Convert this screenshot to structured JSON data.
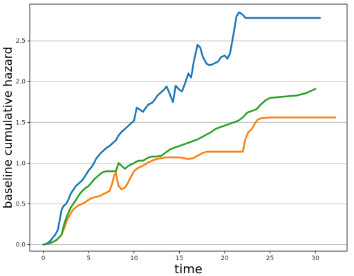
{
  "chart_data": {
    "type": "line",
    "title": "",
    "xlabel": "time",
    "ylabel": "baseline cumulative hazard",
    "xlim": [
      -1.5,
      33.5
    ],
    "ylim": [
      -0.08,
      2.95
    ],
    "xticks": [
      0,
      5,
      10,
      15,
      20,
      25,
      30
    ],
    "yticks": [
      0.0,
      0.5,
      1.0,
      1.5,
      2.0,
      2.5
    ],
    "grid": "horizontal",
    "legend": "none",
    "series": [
      {
        "color": "#1f77b4",
        "x": [
          0,
          0.5,
          0.8,
          1.0,
          1.3,
          1.6,
          1.8,
          2.0,
          2.2,
          2.5,
          2.8,
          3.0,
          3.3,
          3.6,
          4.0,
          4.3,
          4.6,
          5.0,
          5.3,
          5.6,
          5.8,
          6.0,
          6.3,
          6.6,
          7.0,
          7.3,
          7.6,
          8.0,
          8.3,
          8.6,
          9.0,
          9.3,
          9.6,
          10.0,
          10.3,
          10.6,
          11.0,
          11.3,
          11.6,
          12.0,
          12.3,
          12.6,
          13.0,
          13.3,
          13.6,
          14.0,
          14.3,
          14.6,
          15.0,
          15.3,
          15.6,
          16.0,
          16.3,
          16.6,
          17.0,
          17.3,
          17.6,
          18.0,
          18.3,
          18.6,
          19.0,
          19.3,
          19.6,
          20.0,
          20.3,
          20.6,
          21.0,
          21.3,
          21.6,
          22.0,
          22.3,
          22.6,
          23.0,
          23.3,
          23.6,
          24.0,
          24.3,
          24.6,
          25.0,
          26.0,
          27.0,
          28.0,
          29.0,
          30.5
        ],
        "y": [
          0.0,
          0.02,
          0.05,
          0.08,
          0.12,
          0.18,
          0.3,
          0.42,
          0.47,
          0.5,
          0.56,
          0.62,
          0.67,
          0.72,
          0.76,
          0.79,
          0.84,
          0.91,
          0.95,
          1.0,
          1.05,
          1.08,
          1.12,
          1.15,
          1.19,
          1.21,
          1.24,
          1.28,
          1.34,
          1.38,
          1.42,
          1.45,
          1.48,
          1.52,
          1.68,
          1.66,
          1.63,
          1.68,
          1.72,
          1.74,
          1.78,
          1.83,
          1.87,
          1.9,
          1.94,
          1.83,
          1.75,
          1.95,
          1.9,
          1.88,
          1.97,
          2.1,
          2.05,
          2.25,
          2.45,
          2.42,
          2.3,
          2.22,
          2.2,
          2.21,
          2.23,
          2.25,
          2.3,
          2.32,
          2.28,
          2.35,
          2.6,
          2.8,
          2.85,
          2.82,
          2.78,
          2.78,
          2.78,
          2.78,
          2.78,
          2.78,
          2.78,
          2.78,
          2.78,
          2.78,
          2.78,
          2.78,
          2.78,
          2.78
        ]
      },
      {
        "color": "#ff7f0e",
        "x": [
          0,
          0.5,
          1.0,
          1.5,
          2.0,
          2.3,
          2.6,
          3.0,
          3.3,
          3.6,
          4.0,
          4.3,
          4.6,
          5.0,
          5.3,
          5.6,
          6.0,
          6.3,
          6.6,
          7.0,
          7.3,
          7.6,
          7.8,
          8.0,
          8.3,
          8.6,
          9.0,
          9.3,
          9.6,
          10.0,
          10.3,
          10.6,
          11.0,
          11.3,
          11.6,
          12.0,
          12.5,
          13.0,
          13.5,
          14.0,
          14.5,
          15.0,
          15.5,
          16.0,
          16.5,
          17.0,
          17.5,
          18.0,
          18.5,
          19.0,
          19.5,
          20.0,
          20.5,
          21.0,
          21.5,
          22.0,
          22.3,
          22.6,
          23.0,
          23.3,
          23.6,
          24.0,
          25.0,
          26.0,
          27.0,
          28.0,
          29.0,
          30.0,
          31.0,
          32.2
        ],
        "y": [
          0.0,
          0.01,
          0.03,
          0.06,
          0.12,
          0.2,
          0.3,
          0.38,
          0.43,
          0.46,
          0.49,
          0.5,
          0.52,
          0.55,
          0.57,
          0.58,
          0.59,
          0.6,
          0.62,
          0.64,
          0.66,
          0.75,
          0.85,
          0.88,
          0.72,
          0.68,
          0.7,
          0.75,
          0.82,
          0.9,
          0.93,
          0.95,
          0.97,
          0.99,
          1.01,
          1.03,
          1.05,
          1.06,
          1.07,
          1.07,
          1.07,
          1.07,
          1.06,
          1.05,
          1.06,
          1.09,
          1.12,
          1.14,
          1.14,
          1.14,
          1.14,
          1.14,
          1.14,
          1.14,
          1.14,
          1.14,
          1.3,
          1.38,
          1.42,
          1.48,
          1.53,
          1.55,
          1.56,
          1.56,
          1.56,
          1.56,
          1.56,
          1.56,
          1.56,
          1.56
        ]
      },
      {
        "color": "#2ca02c",
        "x": [
          0,
          0.5,
          1.0,
          1.5,
          2.0,
          2.3,
          2.6,
          3.0,
          3.3,
          3.6,
          4.0,
          4.3,
          4.6,
          5.0,
          5.3,
          5.6,
          6.0,
          6.3,
          6.6,
          7.0,
          7.5,
          8.0,
          8.3,
          8.6,
          9.0,
          9.3,
          9.6,
          10.0,
          10.3,
          10.6,
          11.0,
          11.3,
          11.6,
          12.0,
          12.5,
          13.0,
          13.5,
          14.0,
          14.5,
          15.0,
          15.5,
          16.0,
          16.5,
          17.0,
          17.5,
          18.0,
          18.5,
          19.0,
          19.5,
          20.0,
          20.5,
          21.0,
          21.5,
          22.0,
          22.5,
          23.0,
          23.5,
          24.0,
          24.5,
          25.0,
          26.0,
          27.0,
          28.0,
          29.0,
          30.0
        ],
        "y": [
          0.0,
          0.01,
          0.03,
          0.06,
          0.12,
          0.25,
          0.35,
          0.45,
          0.5,
          0.55,
          0.62,
          0.66,
          0.69,
          0.72,
          0.76,
          0.8,
          0.84,
          0.87,
          0.89,
          0.9,
          0.9,
          0.9,
          1.0,
          0.97,
          0.93,
          0.96,
          0.98,
          1.0,
          1.02,
          1.03,
          1.03,
          1.05,
          1.07,
          1.08,
          1.08,
          1.09,
          1.13,
          1.17,
          1.19,
          1.21,
          1.23,
          1.25,
          1.27,
          1.29,
          1.32,
          1.35,
          1.38,
          1.42,
          1.44,
          1.46,
          1.48,
          1.5,
          1.52,
          1.56,
          1.62,
          1.64,
          1.66,
          1.72,
          1.77,
          1.8,
          1.81,
          1.82,
          1.83,
          1.86,
          1.91
        ]
      }
    ]
  }
}
